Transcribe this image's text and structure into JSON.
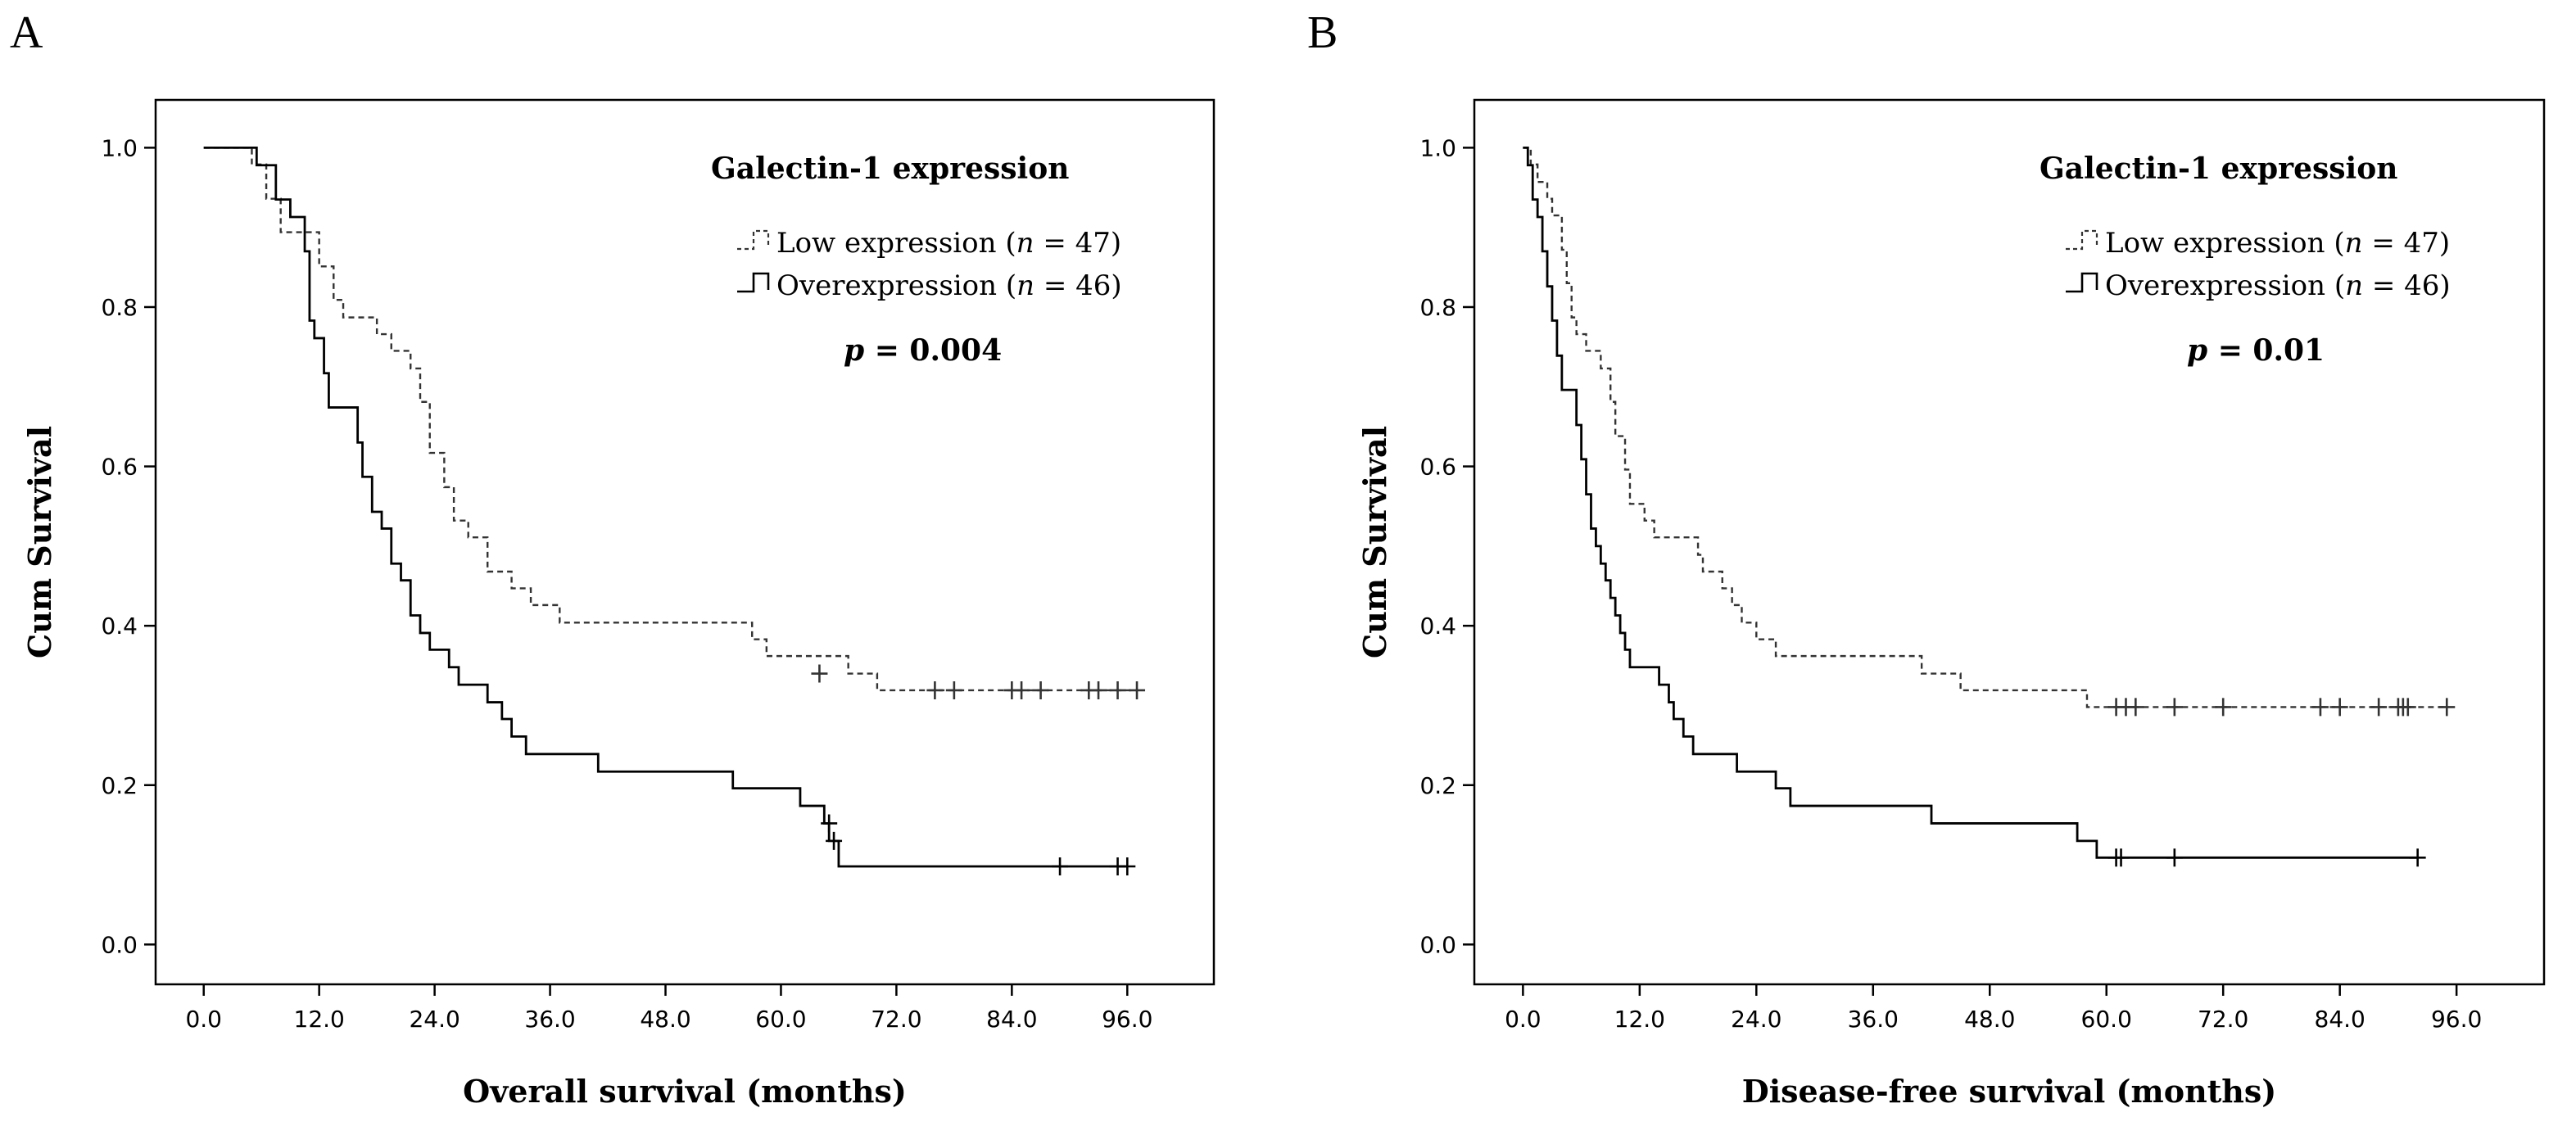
{
  "chart_data": [
    {
      "type": "line",
      "panel_label": "A",
      "xlabel": "Overall survival (months)",
      "ylabel": "Cum Survival",
      "xlim": [
        -5,
        105
      ],
      "ylim": [
        -0.05,
        1.06
      ],
      "x_ticks": [
        0,
        12,
        24,
        36,
        48,
        60,
        72,
        84,
        96
      ],
      "x_tick_labels": [
        "0.0",
        "12.0",
        "24.0",
        "36.0",
        "48.0",
        "60.0",
        "72.0",
        "84.0",
        "96.0"
      ],
      "y_ticks": [
        0,
        0.2,
        0.4,
        0.6,
        0.8,
        1.0
      ],
      "y_tick_labels": [
        "0.0",
        "0.2",
        "0.4",
        "0.6",
        "0.8",
        "1.0"
      ],
      "legend": {
        "title": "Galectin-1 expression",
        "placement": "top-right",
        "entries": [
          {
            "pre": "Low expression (",
            "italic": "n",
            "post": " = 47)",
            "style": "dashed"
          },
          {
            "pre": "Overexpression (",
            "italic": "n",
            "post": " = 46)",
            "style": "solid"
          }
        ]
      },
      "p_value": {
        "symbol": "p",
        "text": " = 0.004"
      },
      "series": [
        {
          "name": "Low expression",
          "style": "dashed",
          "color": "#333333",
          "steps": [
            [
              0,
              1.0
            ],
            [
              5,
              0.979
            ],
            [
              6.5,
              0.936
            ],
            [
              8,
              0.894
            ],
            [
              12,
              0.851
            ],
            [
              13.5,
              0.809
            ],
            [
              14.5,
              0.787
            ],
            [
              18,
              0.766
            ],
            [
              19.5,
              0.745
            ],
            [
              21.5,
              0.723
            ],
            [
              22.5,
              0.681
            ],
            [
              23.5,
              0.617
            ],
            [
              25,
              0.574
            ],
            [
              26,
              0.532
            ],
            [
              27.5,
              0.511
            ],
            [
              29.5,
              0.468
            ],
            [
              32,
              0.447
            ],
            [
              34,
              0.426
            ],
            [
              37,
              0.404
            ],
            [
              57,
              0.383
            ],
            [
              58.5,
              0.362
            ],
            [
              67,
              0.34
            ],
            [
              70,
              0.319
            ]
          ],
          "end_x": 97,
          "censored": [
            [
              64,
              0.34
            ],
            [
              76,
              0.319
            ],
            [
              78,
              0.319
            ],
            [
              84,
              0.319
            ],
            [
              85,
              0.319
            ],
            [
              87,
              0.319
            ],
            [
              92,
              0.319
            ],
            [
              93,
              0.319
            ],
            [
              95,
              0.319
            ],
            [
              97,
              0.319
            ]
          ]
        },
        {
          "name": "Overexpression",
          "style": "solid",
          "color": "#000000",
          "steps": [
            [
              0,
              1.0
            ],
            [
              5.5,
              0.978
            ],
            [
              7.5,
              0.935
            ],
            [
              9,
              0.913
            ],
            [
              10.5,
              0.87
            ],
            [
              11,
              0.783
            ],
            [
              11.5,
              0.761
            ],
            [
              12.5,
              0.717
            ],
            [
              13,
              0.674
            ],
            [
              16,
              0.63
            ],
            [
              16.5,
              0.587
            ],
            [
              17.5,
              0.543
            ],
            [
              18.5,
              0.522
            ],
            [
              19.5,
              0.478
            ],
            [
              20.5,
              0.457
            ],
            [
              21.5,
              0.413
            ],
            [
              22.5,
              0.391
            ],
            [
              23.5,
              0.37
            ],
            [
              25.5,
              0.348
            ],
            [
              26.5,
              0.326
            ],
            [
              29.5,
              0.304
            ],
            [
              31,
              0.283
            ],
            [
              32,
              0.261
            ],
            [
              33.5,
              0.239
            ],
            [
              41,
              0.217
            ],
            [
              55,
              0.196
            ],
            [
              62,
              0.174
            ],
            [
              64.5,
              0.152
            ],
            [
              65,
              0.13
            ],
            [
              66,
              0.098
            ]
          ],
          "end_x": 96,
          "censored": [
            [
              65,
              0.152
            ],
            [
              65.5,
              0.13
            ],
            [
              89,
              0.098
            ],
            [
              95,
              0.098
            ],
            [
              96,
              0.098
            ]
          ]
        }
      ]
    },
    {
      "type": "line",
      "panel_label": "B",
      "xlabel": "Disease-free survival (months)",
      "ylabel": "Cum Survival",
      "xlim": [
        -5,
        105
      ],
      "ylim": [
        -0.05,
        1.06
      ],
      "x_ticks": [
        0,
        12,
        24,
        36,
        48,
        60,
        72,
        84,
        96
      ],
      "x_tick_labels": [
        "0.0",
        "12.0",
        "24.0",
        "36.0",
        "48.0",
        "60.0",
        "72.0",
        "84.0",
        "96.0"
      ],
      "y_ticks": [
        0,
        0.2,
        0.4,
        0.6,
        0.8,
        1.0
      ],
      "y_tick_labels": [
        "0.0",
        "0.2",
        "0.4",
        "0.6",
        "0.8",
        "1.0"
      ],
      "legend": {
        "title": "Galectin-1 expression",
        "placement": "top-right",
        "entries": [
          {
            "pre": "Low expression (",
            "italic": "n",
            "post": " = 47)",
            "style": "dashed"
          },
          {
            "pre": "Overexpression (",
            "italic": "n",
            "post": " = 46)",
            "style": "solid"
          }
        ]
      },
      "p_value": {
        "symbol": "p",
        "text": " = 0.01"
      },
      "series": [
        {
          "name": "Low expression",
          "style": "dashed",
          "color": "#333333",
          "steps": [
            [
              0,
              1.0
            ],
            [
              0.8,
              0.979
            ],
            [
              1.5,
              0.957
            ],
            [
              2.5,
              0.936
            ],
            [
              3,
              0.915
            ],
            [
              4,
              0.872
            ],
            [
              4.5,
              0.83
            ],
            [
              5,
              0.787
            ],
            [
              5.5,
              0.766
            ],
            [
              6.5,
              0.745
            ],
            [
              8,
              0.723
            ],
            [
              9,
              0.681
            ],
            [
              9.5,
              0.638
            ],
            [
              10.5,
              0.596
            ],
            [
              11,
              0.553
            ],
            [
              12.5,
              0.532
            ],
            [
              13.5,
              0.511
            ],
            [
              18,
              0.489
            ],
            [
              18.5,
              0.468
            ],
            [
              20.5,
              0.447
            ],
            [
              21.5,
              0.426
            ],
            [
              22.5,
              0.404
            ],
            [
              24,
              0.383
            ],
            [
              26,
              0.362
            ],
            [
              41,
              0.34
            ],
            [
              45,
              0.319
            ],
            [
              58,
              0.298
            ]
          ],
          "end_x": 95,
          "censored": [
            [
              61,
              0.298
            ],
            [
              62,
              0.298
            ],
            [
              63,
              0.298
            ],
            [
              67,
              0.298
            ],
            [
              72,
              0.298
            ],
            [
              82,
              0.298
            ],
            [
              84,
              0.298
            ],
            [
              88,
              0.298
            ],
            [
              90,
              0.298
            ],
            [
              90.5,
              0.298
            ],
            [
              91,
              0.298
            ],
            [
              95,
              0.298
            ]
          ]
        },
        {
          "name": "Overexpression",
          "style": "solid",
          "color": "#000000",
          "steps": [
            [
              0,
              1.0
            ],
            [
              0.5,
              0.978
            ],
            [
              1,
              0.935
            ],
            [
              1.5,
              0.913
            ],
            [
              2,
              0.87
            ],
            [
              2.5,
              0.826
            ],
            [
              3,
              0.783
            ],
            [
              3.5,
              0.739
            ],
            [
              4,
              0.696
            ],
            [
              5.5,
              0.652
            ],
            [
              6,
              0.609
            ],
            [
              6.5,
              0.565
            ],
            [
              7,
              0.522
            ],
            [
              7.5,
              0.5
            ],
            [
              8,
              0.478
            ],
            [
              8.5,
              0.457
            ],
            [
              9,
              0.435
            ],
            [
              9.5,
              0.413
            ],
            [
              10,
              0.391
            ],
            [
              10.5,
              0.37
            ],
            [
              11,
              0.348
            ],
            [
              14,
              0.326
            ],
            [
              15,
              0.304
            ],
            [
              15.5,
              0.283
            ],
            [
              16.5,
              0.261
            ],
            [
              17.5,
              0.239
            ],
            [
              22,
              0.217
            ],
            [
              26,
              0.196
            ],
            [
              27.5,
              0.174
            ],
            [
              42,
              0.152
            ],
            [
              57,
              0.13
            ],
            [
              59,
              0.109
            ]
          ],
          "end_x": 92,
          "censored": [
            [
              61,
              0.109
            ],
            [
              61.5,
              0.109
            ],
            [
              67,
              0.109
            ],
            [
              92,
              0.109
            ]
          ]
        }
      ]
    }
  ]
}
